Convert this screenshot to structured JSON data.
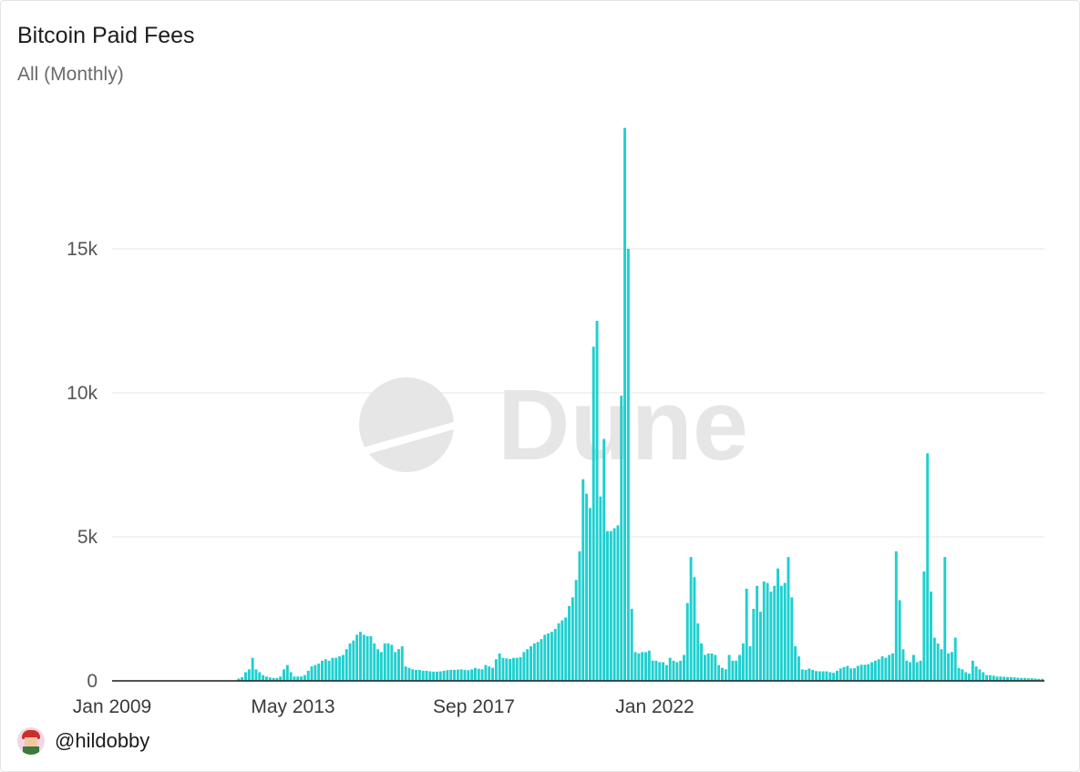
{
  "header": {
    "title": "Bitcoin Paid Fees",
    "subtitle": "All (Monthly)"
  },
  "watermark": {
    "text": "Dune"
  },
  "footer": {
    "handle": "@hildobby",
    "avatar_icon": "pixel-avatar-icon"
  },
  "colors": {
    "bar": "#1fcfcf",
    "grid": "#e5e5e5",
    "baseline": "#1a1a1a",
    "watermark": "#e6e6e6"
  },
  "chart_data": {
    "type": "bar",
    "title": "Bitcoin Paid Fees",
    "subtitle": "All (Monthly)",
    "xlabel": "",
    "ylabel": "",
    "x_start": "Jan 2009",
    "x_tick_labels": [
      "Jan 2009",
      "May 2013",
      "Sep 2017",
      "Jan 2022"
    ],
    "y_tick_labels": [
      "0",
      "5k",
      "10k",
      "15k"
    ],
    "y_ticks": [
      0,
      5000,
      10000,
      15000
    ],
    "ylim": [
      0,
      20000
    ],
    "grid": true,
    "legend": "none",
    "values": [
      0,
      0,
      0,
      0,
      0,
      0,
      0,
      0,
      0,
      0,
      0,
      0,
      0,
      0,
      0,
      0,
      0,
      0,
      0,
      0,
      0,
      0,
      0,
      0,
      0,
      0,
      0,
      0,
      0,
      0,
      0,
      0,
      0,
      0,
      0,
      0,
      80,
      130,
      300,
      400,
      800,
      400,
      300,
      200,
      150,
      120,
      100,
      100,
      150,
      400,
      550,
      300,
      150,
      150,
      150,
      200,
      350,
      500,
      550,
      600,
      700,
      750,
      700,
      800,
      800,
      850,
      900,
      1100,
      1300,
      1400,
      1600,
      1700,
      1600,
      1550,
      1550,
      1300,
      1100,
      1000,
      1300,
      1300,
      1250,
      1000,
      1100,
      1200,
      500,
      450,
      400,
      380,
      380,
      350,
      350,
      330,
      320,
      320,
      330,
      350,
      370,
      380,
      380,
      390,
      400,
      380,
      370,
      400,
      450,
      420,
      400,
      550,
      500,
      450,
      750,
      950,
      800,
      780,
      760,
      800,
      800,
      820,
      1000,
      1100,
      1200,
      1300,
      1350,
      1450,
      1600,
      1650,
      1700,
      1800,
      2000,
      2100,
      2200,
      2600,
      2900,
      3500,
      4500,
      7000,
      6500,
      6000,
      11600,
      12500,
      6400,
      8400,
      5200,
      5200,
      5300,
      5400,
      9900,
      19200,
      15000,
      2500,
      1000,
      950,
      1000,
      1000,
      1050,
      700,
      700,
      650,
      650,
      550,
      800,
      700,
      650,
      700,
      900,
      2700,
      4300,
      3600,
      2000,
      1300,
      900,
      950,
      950,
      900,
      550,
      450,
      400,
      900,
      700,
      700,
      900,
      1300,
      3200,
      1200,
      2500,
      3300,
      2400,
      3450,
      3400,
      3100,
      3300,
      3900,
      3300,
      3400,
      4300,
      2900,
      1200,
      850,
      400,
      380,
      430,
      380,
      340,
      330,
      330,
      330,
      300,
      280,
      350,
      430,
      480,
      520,
      430,
      440,
      520,
      560,
      560,
      580,
      650,
      700,
      750,
      850,
      800,
      900,
      950,
      4500,
      2800,
      1100,
      700,
      650,
      900,
      650,
      700,
      3800,
      7900,
      3100,
      1500,
      1300,
      1100,
      4300,
      950,
      1000,
      1500,
      450,
      400,
      300,
      250,
      700,
      500,
      400,
      300,
      200,
      200,
      180,
      150,
      150,
      140,
      130,
      130,
      120,
      110,
      100,
      100,
      90,
      90,
      80,
      70,
      70
    ]
  }
}
